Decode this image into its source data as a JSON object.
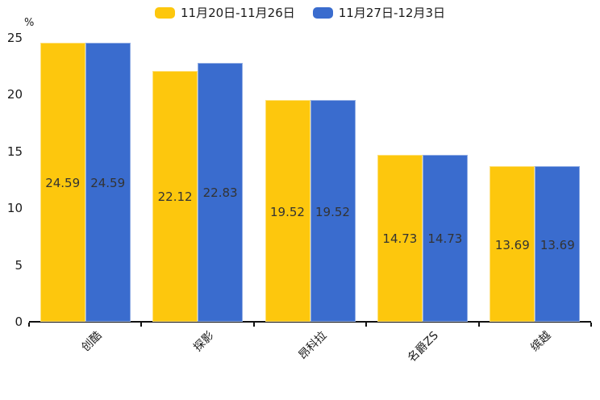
{
  "colors": {
    "series1": "#FDC70D",
    "series2": "#3A6CCE",
    "axis": "#111111",
    "text": "#1a1a1a",
    "value_label": "#333333",
    "background": "#ffffff"
  },
  "legend": {
    "items": [
      {
        "label": "11月20日-11月26日",
        "color": "#FDC70D"
      },
      {
        "label": "11月27日-12月3日",
        "color": "#3A6CCE"
      }
    ]
  },
  "chart_data": {
    "type": "bar",
    "title": "",
    "categories": [
      "创酷",
      "探影",
      "昂科拉",
      "名爵ZS",
      "缤越"
    ],
    "series": [
      {
        "name": "11月20日-11月26日",
        "color": "#FDC70D",
        "values": [
          24.59,
          22.12,
          19.52,
          14.73,
          13.69
        ]
      },
      {
        "name": "11月27日-12月3日",
        "color": "#3A6CCE",
        "values": [
          24.59,
          22.83,
          19.52,
          14.73,
          13.69
        ]
      }
    ],
    "value_labels": [
      "24.59",
      "22.12",
      "19.52",
      "14.73",
      "13.69",
      "24.59",
      "22.83",
      "19.52",
      "14.73",
      "13.69"
    ],
    "xlabel": "",
    "ylabel": "%",
    "ylim": [
      0,
      25
    ],
    "yticks": [
      0,
      5,
      10,
      15,
      20,
      25
    ],
    "grid": false,
    "legend_position": "top-center",
    "value_label_position": "inside-middle",
    "category_label_rotation_deg": 45
  }
}
